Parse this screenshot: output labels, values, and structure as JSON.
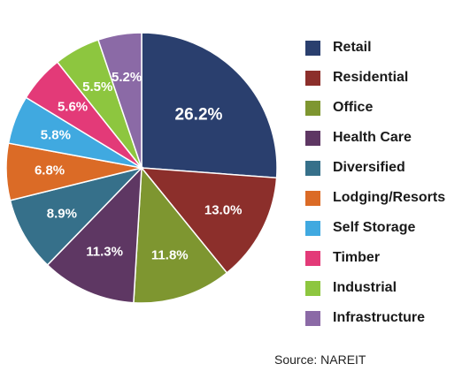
{
  "chart_data": {
    "type": "pie",
    "title": "",
    "slices": [
      {
        "label": "Retail",
        "value": 26.2,
        "value_label": "26.2%",
        "color": "#2a3f6e"
      },
      {
        "label": "Residential",
        "value": 13.0,
        "value_label": "13.0%",
        "color": "#8c2f2b"
      },
      {
        "label": "Office",
        "value": 11.8,
        "value_label": "11.8%",
        "color": "#7e9630"
      },
      {
        "label": "Health Care",
        "value": 11.3,
        "value_label": "11.3%",
        "color": "#5e3763"
      },
      {
        "label": "Diversified",
        "value": 8.9,
        "value_label": "8.9%",
        "color": "#36708a"
      },
      {
        "label": "Lodging/Resorts",
        "value": 6.8,
        "value_label": "6.8%",
        "color": "#db6b26"
      },
      {
        "label": "Self Storage",
        "value": 5.8,
        "value_label": "5.8%",
        "color": "#40a9e0"
      },
      {
        "label": "Timber",
        "value": 5.6,
        "value_label": "5.6%",
        "color": "#e33a78"
      },
      {
        "label": "Industrial",
        "value": 5.5,
        "value_label": "5.5%",
        "color": "#8dc63f"
      },
      {
        "label": "Infrastructure",
        "value": 5.2,
        "value_label": "5.2%",
        "color": "#8b6aa6"
      }
    ],
    "start_angle": "12 o'clock",
    "direction": "clockwise",
    "legend_position": "right",
    "source_note": "Source: NAREIT"
  }
}
